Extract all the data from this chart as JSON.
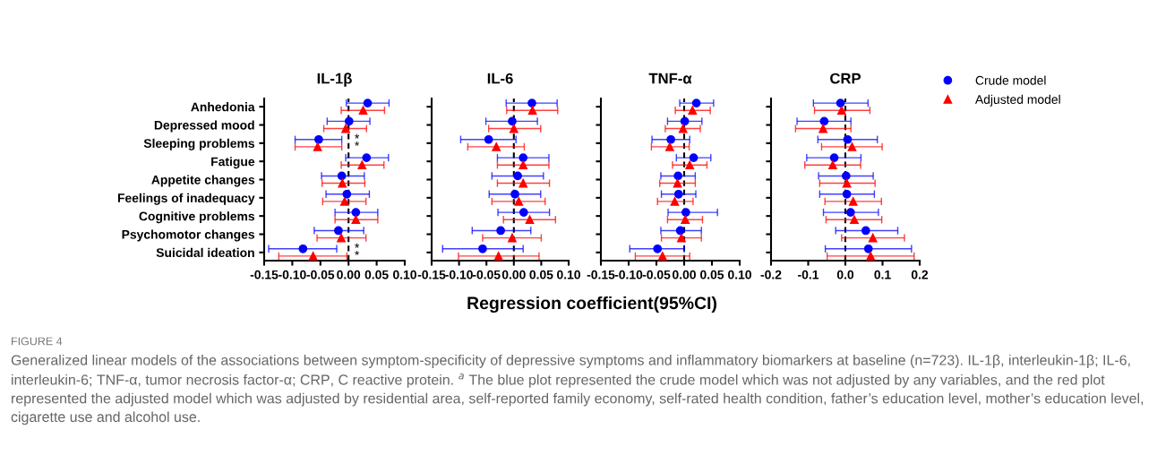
{
  "chart_data": [
    {
      "type": "scatter",
      "title": "IL-1β",
      "xlabel": "Regression coefficient(95%CI)",
      "orientation": "horizontal",
      "categories": [
        "Anhedonia",
        "Depressed mood",
        "Sleeping problems",
        "Fatigue",
        "Appetite changes",
        "Feelings of inadequacy",
        "Cognitive problems",
        "Psychomotor changes",
        "Suicidal ideation"
      ],
      "xlim": [
        -0.15,
        0.1
      ],
      "xticks": [
        {
          "value": -0.15,
          "label": "-0.15"
        },
        {
          "value": -0.1,
          "label": "-0.10"
        },
        {
          "value": -0.05,
          "label": "-0.05"
        },
        {
          "value": 0,
          "label": "0.00"
        },
        {
          "value": 0.05,
          "label": "0.05"
        },
        {
          "value": 0.1,
          "label": "0.10"
        }
      ],
      "grid": false,
      "legend": "top right",
      "ref_lines": [
        {
          "axis": "x",
          "value": 0,
          "color": "#000000",
          "line_style": "dashed"
        }
      ],
      "series": [
        {
          "name": "Crude model",
          "color": "#0000ff",
          "marker": "circle",
          "values": [
            0.034,
            0.001,
            -0.053,
            0.032,
            -0.012,
            -0.003,
            0.013,
            -0.018,
            -0.081
          ],
          "errors": [
            [
              -0.004,
              0.072
            ],
            [
              -0.038,
              0.038
            ],
            [
              -0.095,
              -0.012
            ],
            [
              -0.005,
              0.071
            ],
            [
              -0.048,
              0.028
            ],
            [
              -0.04,
              0.037
            ],
            [
              -0.024,
              0.052
            ],
            [
              -0.061,
              0.027
            ],
            [
              -0.142,
              -0.021
            ]
          ]
        },
        {
          "name": "Adjusted model",
          "color": "#ff0000",
          "marker": "triangle",
          "values": [
            0.026,
            -0.005,
            -0.055,
            0.024,
            -0.011,
            -0.007,
            0.013,
            -0.013,
            -0.063
          ],
          "errors": [
            [
              -0.013,
              0.064
            ],
            [
              -0.044,
              0.032
            ],
            [
              -0.095,
              -0.012
            ],
            [
              -0.013,
              0.063
            ],
            [
              -0.047,
              0.029
            ],
            [
              -0.046,
              0.031
            ],
            [
              -0.024,
              0.052
            ],
            [
              -0.056,
              0.031
            ],
            [
              -0.124,
              -0.003
            ]
          ]
        }
      ],
      "annotations": [
        "*",
        "*",
        "*",
        "*",
        "FIGURE 4",
        "Generalized linear models of the associations between symptom-specificity of depressive symptoms and inflammatory biomarkers at baseline (n=723). IL-1β, interleukin-1β; IL-6, interleukin-6; TNF-α, tumor necrosis factor-α; CRP, C reactive protein. $^{a}$ The blue plot represented the crude model which was not adjusted by any variables, and the red plot represented the adjusted model which was adjusted by residential area, self-reported family economy, self-rated health condition, father’s education level, mother’s education level, cigarette use and alcohol use."
      ]
    },
    {
      "type": "scatter",
      "title": "IL-6",
      "orientation": "horizontal",
      "tick_labels": "x",
      "categories": [
        null,
        null,
        null,
        null,
        null,
        null,
        null,
        null,
        null
      ],
      "xlim": [
        -0.15,
        0.1
      ],
      "xticks": [
        {
          "value": -0.15,
          "label": "-0.15"
        },
        {
          "value": -0.1,
          "label": "-0.10"
        },
        {
          "value": -0.05,
          "label": "-0.05"
        },
        {
          "value": 0,
          "label": "0.00"
        },
        {
          "value": 0.05,
          "label": "0.05"
        },
        {
          "value": 0.1,
          "label": "0.10"
        }
      ],
      "grid": false,
      "ref_lines": [
        {
          "axis": "x",
          "value": 0,
          "color": "#000000",
          "line_style": "dashed"
        }
      ],
      "series": [
        {
          "color": "#0000ff",
          "marker": "circle",
          "values": [
            0.033,
            -0.003,
            -0.046,
            0.017,
            0.007,
            0.002,
            0.018,
            -0.024,
            -0.057
          ],
          "errors": [
            [
              -0.014,
              0.079
            ],
            [
              -0.051,
              0.043
            ],
            [
              -0.097,
              0.004
            ],
            [
              -0.03,
              0.064
            ],
            [
              -0.04,
              0.054
            ],
            [
              -0.045,
              0.049
            ],
            [
              -0.029,
              0.065
            ],
            [
              -0.076,
              0.031
            ],
            [
              -0.13,
              0.017
            ]
          ]
        },
        {
          "color": "#ff0000",
          "marker": "triangle",
          "values": [
            0.034,
            0.0,
            -0.032,
            0.017,
            0.017,
            0.009,
            0.029,
            -0.003,
            -0.028
          ],
          "errors": [
            [
              -0.013,
              0.08
            ],
            [
              -0.046,
              0.049
            ],
            [
              -0.084,
              0.019
            ],
            [
              -0.03,
              0.064
            ],
            [
              -0.03,
              0.065
            ],
            [
              -0.04,
              0.057
            ],
            [
              -0.019,
              0.076
            ],
            [
              -0.057,
              0.05
            ],
            [
              -0.101,
              0.046
            ]
          ]
        }
      ]
    },
    {
      "type": "scatter",
      "title": "TNF-α",
      "orientation": "horizontal",
      "tick_labels": "x",
      "categories": [
        null,
        null,
        null,
        null,
        null,
        null,
        null,
        null,
        null
      ],
      "xlim": [
        -0.15,
        0.1
      ],
      "xticks": [
        {
          "value": -0.15,
          "label": "-0.15"
        },
        {
          "value": -0.1,
          "label": "-0.10"
        },
        {
          "value": -0.05,
          "label": "-0.05"
        },
        {
          "value": 0,
          "label": "0.00"
        },
        {
          "value": 0.05,
          "label": "0.05"
        },
        {
          "value": 0.1,
          "label": "0.10"
        }
      ],
      "grid": false,
      "ref_lines": [
        {
          "axis": "x",
          "value": 0,
          "color": "#000000",
          "line_style": "dashed"
        }
      ],
      "series": [
        {
          "color": "#0000ff",
          "marker": "circle",
          "values": [
            0.022,
            0.001,
            -0.024,
            0.017,
            -0.011,
            -0.01,
            0.003,
            -0.007,
            -0.048
          ],
          "errors": [
            [
              -0.008,
              0.053
            ],
            [
              -0.03,
              0.032
            ],
            [
              -0.058,
              0.01
            ],
            [
              -0.014,
              0.048
            ],
            [
              -0.042,
              0.02
            ],
            [
              -0.041,
              0.021
            ],
            [
              -0.029,
              0.06
            ],
            [
              -0.042,
              0.031
            ],
            [
              -0.098,
              0.0
            ]
          ]
        },
        {
          "color": "#ff0000",
          "marker": "triangle",
          "values": [
            0.015,
            -0.002,
            -0.026,
            0.01,
            -0.012,
            -0.017,
            0.002,
            -0.005,
            -0.039
          ],
          "errors": [
            [
              -0.016,
              0.047
            ],
            [
              -0.034,
              0.029
            ],
            [
              -0.059,
              0.009
            ],
            [
              -0.021,
              0.041
            ],
            [
              -0.044,
              0.02
            ],
            [
              -0.048,
              0.016
            ],
            [
              -0.03,
              0.033
            ],
            [
              -0.041,
              0.031
            ],
            [
              -0.088,
              0.01
            ]
          ]
        }
      ]
    },
    {
      "type": "scatter",
      "title": "CRP",
      "orientation": "horizontal",
      "tick_labels": "x",
      "categories": [
        null,
        null,
        null,
        null,
        null,
        null,
        null,
        null,
        null
      ],
      "xlim": [
        -0.2,
        0.2
      ],
      "xticks": [
        {
          "value": -0.2,
          "label": "-0.2"
        },
        {
          "value": -0.1,
          "label": "-0.1"
        },
        {
          "value": 0,
          "label": "0.0"
        },
        0.1,
        0.2
      ],
      "grid": false,
      "ref_lines": [
        {
          "axis": "x",
          "value": 0,
          "color": "#000000",
          "line_style": "dashed"
        }
      ],
      "series": [
        {
          "color": "#0000ff",
          "marker": "circle",
          "values": [
            -0.013,
            -0.057,
            0.006,
            -0.03,
            0.002,
            0.004,
            0.014,
            0.055,
            0.062
          ],
          "errors": [
            [
              -0.086,
              0.061
            ],
            [
              -0.13,
              0.015
            ],
            [
              -0.074,
              0.086
            ],
            [
              -0.104,
              0.042
            ],
            [
              -0.072,
              0.075
            ],
            [
              -0.069,
              0.078
            ],
            [
              -0.059,
              0.089
            ],
            [
              -0.026,
              0.141
            ],
            [
              -0.054,
              0.178
            ]
          ]
        },
        {
          "color": "#ff0000",
          "marker": "triangle",
          "values": [
            -0.01,
            -0.06,
            0.018,
            -0.034,
            0.004,
            0.021,
            0.024,
            0.074,
            0.068
          ],
          "errors": [
            [
              -0.083,
              0.066
            ],
            [
              -0.134,
              0.015
            ],
            [
              -0.064,
              0.099
            ],
            [
              -0.109,
              0.041
            ],
            [
              -0.069,
              0.08
            ],
            [
              -0.055,
              0.097
            ],
            [
              -0.052,
              0.098
            ],
            [
              -0.01,
              0.159
            ],
            [
              -0.049,
              0.185
            ]
          ]
        }
      ]
    }
  ]
}
